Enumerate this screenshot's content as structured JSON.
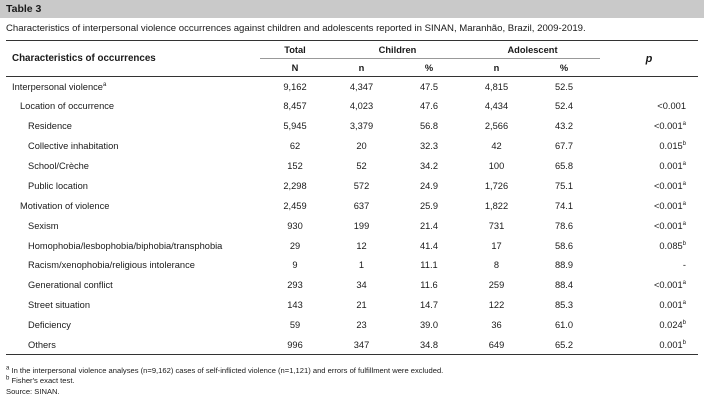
{
  "table_label": "Table 3",
  "caption": "Characteristics of interpersonal violence occurrences against children and adolescents reported in SINAN, Maranhão, Brazil, 2009-2019.",
  "header": {
    "characteristics": "Characteristics of occurrences",
    "total": "Total",
    "children": "Children",
    "adolescent": "Adolescent",
    "p": "p",
    "sub": [
      "N",
      "n",
      "%",
      "n",
      "%"
    ]
  },
  "rows": [
    {
      "label": "Interpersonal violence",
      "sup": "a",
      "level": 0,
      "N": "9,162",
      "cn": "4,347",
      "cp": "47.5",
      "an": "4,815",
      "ap": "52.5",
      "p": "",
      "psup": ""
    },
    {
      "label": "Location of occurrence",
      "sup": "",
      "level": 1,
      "N": "8,457",
      "cn": "4,023",
      "cp": "47.6",
      "an": "4,434",
      "ap": "52.4",
      "p": "<0.001",
      "psup": ""
    },
    {
      "label": "Residence",
      "sup": "",
      "level": 2,
      "N": "5,945",
      "cn": "3,379",
      "cp": "56.8",
      "an": "2,566",
      "ap": "43.2",
      "p": "<0.001",
      "psup": "a"
    },
    {
      "label": "Collective inhabitation",
      "sup": "",
      "level": 2,
      "N": "62",
      "cn": "20",
      "cp": "32.3",
      "an": "42",
      "ap": "67.7",
      "p": "0.015",
      "psup": "b"
    },
    {
      "label": "School/Crèche",
      "sup": "",
      "level": 2,
      "N": "152",
      "cn": "52",
      "cp": "34.2",
      "an": "100",
      "ap": "65.8",
      "p": "0.001",
      "psup": "a"
    },
    {
      "label": "Public location",
      "sup": "",
      "level": 2,
      "N": "2,298",
      "cn": "572",
      "cp": "24.9",
      "an": "1,726",
      "ap": "75.1",
      "p": "<0.001",
      "psup": "a"
    },
    {
      "label": "Motivation of violence",
      "sup": "",
      "level": 1,
      "N": "2,459",
      "cn": "637",
      "cp": "25.9",
      "an": "1,822",
      "ap": "74.1",
      "p": "<0.001",
      "psup": "a"
    },
    {
      "label": "Sexism",
      "sup": "",
      "level": 2,
      "N": "930",
      "cn": "199",
      "cp": "21.4",
      "an": "731",
      "ap": "78.6",
      "p": "<0.001",
      "psup": "a"
    },
    {
      "label": "Homophobia/lesbophobia/biphobia/transphobia",
      "sup": "",
      "level": 2,
      "N": "29",
      "cn": "12",
      "cp": "41.4",
      "an": "17",
      "ap": "58.6",
      "p": "0.085",
      "psup": "b"
    },
    {
      "label": "Racism/xenophobia/religious intolerance",
      "sup": "",
      "level": 2,
      "N": "9",
      "cn": "1",
      "cp": "11.1",
      "an": "8",
      "ap": "88.9",
      "p": "-",
      "psup": ""
    },
    {
      "label": "Generational conflict",
      "sup": "",
      "level": 2,
      "N": "293",
      "cn": "34",
      "cp": "11.6",
      "an": "259",
      "ap": "88.4",
      "p": "<0.001",
      "psup": "a"
    },
    {
      "label": "Street situation",
      "sup": "",
      "level": 2,
      "N": "143",
      "cn": "21",
      "cp": "14.7",
      "an": "122",
      "ap": "85.3",
      "p": "0.001",
      "psup": "a"
    },
    {
      "label": "Deficiency",
      "sup": "",
      "level": 2,
      "N": "59",
      "cn": "23",
      "cp": "39.0",
      "an": "36",
      "ap": "61.0",
      "p": "0.024",
      "psup": "b"
    },
    {
      "label": "Others",
      "sup": "",
      "level": 2,
      "N": "996",
      "cn": "347",
      "cp": "34.8",
      "an": "649",
      "ap": "65.2",
      "p": "0.001",
      "psup": "b"
    }
  ],
  "footnotes": [
    {
      "mark": "a",
      "text": "In the interpersonal violence analyses (n=9,162) cases of self-inflicted violence (n=1,121) and errors of fulfillment were excluded."
    },
    {
      "mark": "b",
      "text": "Fisher's exact test."
    },
    {
      "mark": "",
      "text": "Source: SINAN."
    }
  ]
}
